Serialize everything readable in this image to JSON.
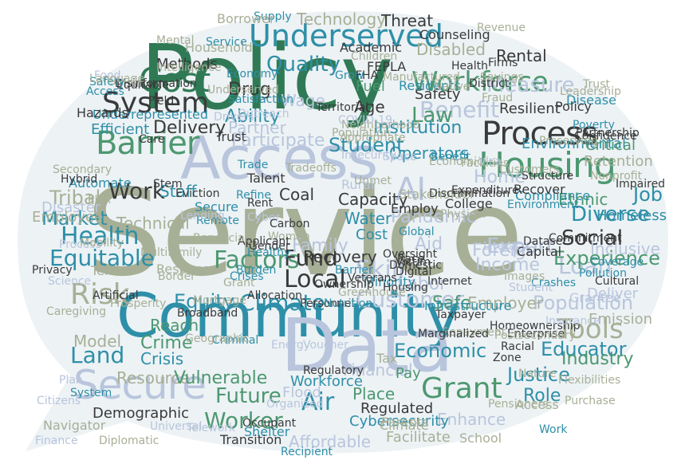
{
  "colors": {
    "background": "#ffffff",
    "bubble": "#edf2f5",
    "green_dark": "#2f7a55",
    "green_mid": "#4d9870",
    "teal": "#2e8fa8",
    "blue_grey": "#b8c5dc",
    "olive_grey": "#a7af96",
    "charcoal": "#3a3a3a",
    "light_grey": "#c7cbcf"
  },
  "words": [
    {
      "text": "Service",
      "color": "olive_grey"
    },
    {
      "text": "Policy",
      "color": "green_dark"
    },
    {
      "text": "Community",
      "color": "teal"
    },
    {
      "text": "Data",
      "color": "blue_grey"
    },
    {
      "text": "Access",
      "color": "blue_grey"
    },
    {
      "text": "Housing",
      "color": "green_mid"
    },
    {
      "text": "Process",
      "color": "charcoal"
    },
    {
      "text": "Secure",
      "color": "blue_grey"
    },
    {
      "text": "Cost",
      "color": "green_dark"
    },
    {
      "text": "Barrier",
      "color": "green_mid"
    },
    {
      "text": "Underserved",
      "color": "teal"
    },
    {
      "text": "Workforce",
      "color": "green_mid"
    },
    {
      "text": "System",
      "color": "charcoal"
    },
    {
      "text": "Risk",
      "color": "olive_grey"
    },
    {
      "text": "Climate",
      "color": "teal"
    },
    {
      "text": "Grant",
      "color": "green_mid"
    },
    {
      "text": "Customer",
      "color": "blue_grey"
    },
    {
      "text": "Benefit",
      "color": "blue_grey"
    },
    {
      "text": "Quality",
      "color": "teal"
    },
    {
      "text": "Work",
      "color": "charcoal"
    },
    {
      "text": "Health",
      "color": "teal"
    },
    {
      "text": "Equitable",
      "color": "teal"
    },
    {
      "text": "Factors",
      "color": "green_mid"
    },
    {
      "text": "Fund",
      "color": "charcoal"
    },
    {
      "text": "Local",
      "color": "charcoal"
    },
    {
      "text": "Student",
      "color": "teal"
    },
    {
      "text": "Law",
      "color": "green_mid"
    },
    {
      "text": "Loan",
      "color": "blue_grey"
    },
    {
      "text": "Population",
      "color": "blue_grey"
    },
    {
      "text": "Experience",
      "color": "green_mid"
    },
    {
      "text": "Tools",
      "color": "olive_grey"
    },
    {
      "text": "Educator",
      "color": "teal"
    },
    {
      "text": "Economic",
      "color": "teal"
    },
    {
      "text": "Skill",
      "color": "blue_grey"
    },
    {
      "text": "Land",
      "color": "teal"
    },
    {
      "text": "Equity",
      "color": "teal"
    },
    {
      "text": "Social",
      "color": "charcoal"
    },
    {
      "text": "Job",
      "color": "teal"
    },
    {
      "text": "Diverse",
      "color": "teal"
    },
    {
      "text": "Measure",
      "color": "blue_grey"
    },
    {
      "text": "AI",
      "color": "blue_grey"
    },
    {
      "text": "Future",
      "color": "green_mid"
    },
    {
      "text": "Worker",
      "color": "green_mid"
    },
    {
      "text": "Role",
      "color": "teal"
    },
    {
      "text": "Justice",
      "color": "teal"
    },
    {
      "text": "Industry",
      "color": "green_mid"
    },
    {
      "text": "Export",
      "color": "blue_grey"
    },
    {
      "text": "Income",
      "color": "blue_grey"
    },
    {
      "text": "Pandemic",
      "color": "blue_grey"
    },
    {
      "text": "Tribal",
      "color": "olive_grey"
    },
    {
      "text": "Market",
      "color": "teal"
    },
    {
      "text": "Disaster",
      "color": "blue_grey"
    },
    {
      "text": "Employee",
      "color": "olive_grey"
    },
    {
      "text": "Model",
      "color": "olive_grey"
    },
    {
      "text": "Crime",
      "color": "green_mid"
    },
    {
      "text": "Crisis",
      "color": "teal"
    },
    {
      "text": "Reach",
      "color": "green_mid"
    },
    {
      "text": "Resource",
      "color": "olive_grey"
    },
    {
      "text": "Vulnerable",
      "color": "green_mid"
    },
    {
      "text": "Air",
      "color": "teal"
    },
    {
      "text": "Methods",
      "color": "charcoal"
    },
    {
      "text": "Drug",
      "color": "charcoal"
    },
    {
      "text": "Wage",
      "color": "blue_grey"
    },
    {
      "text": "Age",
      "color": "charcoal"
    },
    {
      "text": "Fuel",
      "color": "green_mid"
    },
    {
      "text": "Ability",
      "color": "teal"
    },
    {
      "text": "Delivery",
      "color": "charcoal"
    },
    {
      "text": "Participate",
      "color": "blue_grey"
    },
    {
      "text": "Partner",
      "color": "blue_grey"
    },
    {
      "text": "Safety",
      "color": "charcoal"
    },
    {
      "text": "Resilient",
      "color": "charcoal"
    },
    {
      "text": "Environmental",
      "color": "teal"
    },
    {
      "text": "Staff",
      "color": "teal"
    },
    {
      "text": "Coal",
      "color": "charcoal"
    },
    {
      "text": "Home",
      "color": "blue_grey"
    },
    {
      "text": "Aid",
      "color": "blue_grey"
    },
    {
      "text": "Foreign",
      "color": "blue_grey"
    },
    {
      "text": "Labor",
      "color": "blue_grey"
    },
    {
      "text": "Safe",
      "color": "green_mid"
    },
    {
      "text": "Family",
      "color": "blue_grey"
    },
    {
      "text": "Recovery",
      "color": "charcoal"
    },
    {
      "text": "Technical",
      "color": "olive_grey"
    },
    {
      "text": "Capacity",
      "color": "charcoal"
    },
    {
      "text": "Water",
      "color": "teal"
    },
    {
      "text": "Operators",
      "color": "teal"
    },
    {
      "text": "Institution",
      "color": "teal"
    },
    {
      "text": "Technology",
      "color": "olive_grey"
    },
    {
      "text": "Threat",
      "color": "charcoal"
    },
    {
      "text": "Disabled",
      "color": "olive_grey"
    },
    {
      "text": "Rental",
      "color": "charcoal"
    },
    {
      "text": "Supply",
      "color": "teal"
    },
    {
      "text": "Borrower",
      "color": "olive_grey"
    },
    {
      "text": "Household",
      "color": "olive_grey"
    },
    {
      "text": "Efficient",
      "color": "teal"
    },
    {
      "text": "Underrepresented",
      "color": "teal"
    },
    {
      "text": "Hazards",
      "color": "charcoal"
    },
    {
      "text": "Trust",
      "color": "charcoal"
    },
    {
      "text": "Enhance",
      "color": "blue_grey"
    },
    {
      "text": "Affordable",
      "color": "blue_grey"
    },
    {
      "text": "Facilitate",
      "color": "olive_grey"
    },
    {
      "text": "Demographic",
      "color": "charcoal"
    },
    {
      "text": "Navigator",
      "color": "olive_grey"
    },
    {
      "text": "Finance",
      "color": "blue_grey"
    },
    {
      "text": "Deliver",
      "color": "blue_grey"
    },
    {
      "text": "Inclusive",
      "color": "blue_grey"
    },
    {
      "text": "Homeless",
      "color": "teal"
    },
    {
      "text": "Ethnic",
      "color": "green_mid"
    },
    {
      "text": "Compliance",
      "color": "teal"
    },
    {
      "text": "Retention",
      "color": "olive_grey"
    },
    {
      "text": "Critical",
      "color": "green_mid"
    },
    {
      "text": "Grantee",
      "color": "blue_grey"
    },
    {
      "text": "Emission",
      "color": "olive_grey"
    },
    {
      "text": "Employer",
      "color": "olive_grey"
    },
    {
      "text": "Infrastructure",
      "color": "teal"
    },
    {
      "text": "Financial",
      "color": "blue_grey"
    },
    {
      "text": "Place",
      "color": "green_mid"
    },
    {
      "text": "Pay",
      "color": "green_mid"
    },
    {
      "text": "Tax",
      "color": "olive_grey"
    },
    {
      "text": "Nature",
      "color": "olive_grey"
    },
    {
      "text": "Zone",
      "color": "charcoal"
    },
    {
      "text": "Racial",
      "color": "charcoal"
    },
    {
      "text": "Capital",
      "color": "charcoal"
    },
    {
      "text": "Dataset",
      "color": "charcoal"
    },
    {
      "text": "Internet",
      "color": "charcoal"
    },
    {
      "text": "Victim",
      "color": "charcoal"
    },
    {
      "text": "Digital",
      "color": "charcoal"
    },
    {
      "text": "Race",
      "color": "charcoal"
    },
    {
      "text": "Minority",
      "color": "teal"
    },
    {
      "text": "Cost",
      "color": "teal"
    },
    {
      "text": "Employ",
      "color": "charcoal"
    },
    {
      "text": "Global",
      "color": "teal"
    },
    {
      "text": "Rural",
      "color": "blue_grey"
    },
    {
      "text": "Stakeholder",
      "color": "olive_grey"
    },
    {
      "text": "Talent",
      "color": "charcoal"
    },
    {
      "text": "Trade",
      "color": "teal"
    },
    {
      "text": "Refine",
      "color": "teal"
    },
    {
      "text": "Rent",
      "color": "charcoal"
    },
    {
      "text": "Cyber",
      "color": "blue_grey"
    },
    {
      "text": "Secure",
      "color": "teal"
    },
    {
      "text": "Remote",
      "color": "teal"
    },
    {
      "text": "Women",
      "color": "olive_grey"
    },
    {
      "text": "Carbon",
      "color": "charcoal"
    },
    {
      "text": "Tenant",
      "color": "olive_grey"
    },
    {
      "text": "Response",
      "color": "olive_grey"
    },
    {
      "text": "Science",
      "color": "blue_grey"
    },
    {
      "text": "Privacy",
      "color": "charcoal"
    },
    {
      "text": "Border",
      "color": "olive_grey"
    },
    {
      "text": "Burden",
      "color": "teal"
    },
    {
      "text": "Crises",
      "color": "teal"
    },
    {
      "text": "Mortgage",
      "color": "olive_grey"
    },
    {
      "text": "Broadband",
      "color": "charcoal"
    },
    {
      "text": "Stem",
      "color": "charcoal"
    },
    {
      "text": "Eviction",
      "color": "charcoal"
    },
    {
      "text": "Care",
      "color": "charcoal"
    },
    {
      "text": "PHA",
      "color": "olive_grey"
    },
    {
      "text": "Automate",
      "color": "teal"
    },
    {
      "text": "Secondary",
      "color": "olive_grey"
    },
    {
      "text": "Disinformation",
      "color": "charcoal"
    },
    {
      "text": "Food",
      "color": "blue_grey"
    },
    {
      "text": "Equitable",
      "color": "charcoal"
    },
    {
      "text": "Field",
      "color": "charcoal"
    },
    {
      "text": "Economy",
      "color": "teal"
    },
    {
      "text": "Grow",
      "color": "teal"
    },
    {
      "text": "FEPLA",
      "color": "charcoal"
    },
    {
      "text": "FHA",
      "color": "charcoal"
    },
    {
      "text": "Academic",
      "color": "charcoal"
    },
    {
      "text": "Children",
      "color": "olive_grey"
    },
    {
      "text": "Manufactured",
      "color": "olive_grey"
    },
    {
      "text": "Residents",
      "color": "teal"
    },
    {
      "text": "Native",
      "color": "olive_grey"
    },
    {
      "text": "Counseling",
      "color": "charcoal"
    },
    {
      "text": "Health",
      "color": "charcoal"
    },
    {
      "text": "Fraud",
      "color": "olive_grey"
    },
    {
      "text": "District",
      "color": "charcoal"
    },
    {
      "text": "Firms",
      "color": "charcoal"
    },
    {
      "text": "Disease",
      "color": "teal"
    },
    {
      "text": "Policy",
      "color": "charcoal"
    },
    {
      "text": "Poverty",
      "color": "teal"
    },
    {
      "text": "Partnership",
      "color": "charcoal"
    },
    {
      "text": "Confidence",
      "color": "charcoal"
    },
    {
      "text": "Neighborhood",
      "color": "olive_grey"
    },
    {
      "text": "COVID-19",
      "color": "blue_grey"
    },
    {
      "text": "Space",
      "color": "blue_grey"
    },
    {
      "text": "Benefit",
      "color": "teal"
    },
    {
      "text": "Facilities",
      "color": "olive_grey"
    },
    {
      "text": "Recover",
      "color": "charcoal"
    },
    {
      "text": "College",
      "color": "charcoal"
    },
    {
      "text": "Discrimination",
      "color": "charcoal"
    },
    {
      "text": "Healthy",
      "color": "teal"
    },
    {
      "text": "Applicant",
      "color": "charcoal"
    },
    {
      "text": "Gender",
      "color": "charcoal"
    },
    {
      "text": "Cultural",
      "color": "charcoal"
    },
    {
      "text": "Crashes",
      "color": "teal"
    },
    {
      "text": "Pollution",
      "color": "teal"
    },
    {
      "text": "Coverage",
      "color": "teal"
    },
    {
      "text": "Impaired",
      "color": "charcoal"
    },
    {
      "text": "Oversight",
      "color": "charcoal"
    },
    {
      "text": "Domestic",
      "color": "charcoal"
    },
    {
      "text": "Housing",
      "color": "charcoal"
    },
    {
      "text": "Barrier",
      "color": "teal"
    },
    {
      "text": "Veterans",
      "color": "charcoal"
    },
    {
      "text": "Taxpayer",
      "color": "charcoal"
    },
    {
      "text": "Homeownership",
      "color": "charcoal"
    },
    {
      "text": "Commitment",
      "color": "charcoal"
    },
    {
      "text": "Allocation",
      "color": "charcoal"
    },
    {
      "text": "Personnel",
      "color": "charcoal"
    },
    {
      "text": "Nutrition",
      "color": "teal"
    },
    {
      "text": "Energy",
      "color": "blue_grey"
    },
    {
      "text": "Voucher",
      "color": "blue_grey"
    },
    {
      "text": "Regulatory",
      "color": "charcoal"
    },
    {
      "text": "Workforce",
      "color": "teal"
    },
    {
      "text": "Flood",
      "color": "blue_grey"
    },
    {
      "text": "Organized",
      "color": "blue_grey"
    },
    {
      "text": "Occupant",
      "color": "charcoal"
    },
    {
      "text": "Shelter",
      "color": "teal"
    },
    {
      "text": "Transition",
      "color": "charcoal"
    },
    {
      "text": "Telework",
      "color": "blue_grey"
    },
    {
      "text": "Universal",
      "color": "blue_grey"
    },
    {
      "text": "Recipient",
      "color": "teal"
    },
    {
      "text": "Cybersecurity",
      "color": "teal"
    },
    {
      "text": "Regulated",
      "color": "charcoal"
    },
    {
      "text": "Parents",
      "color": "olive_grey"
    },
    {
      "text": "Climate",
      "color": "olive_grey"
    },
    {
      "text": "School",
      "color": "olive_grey"
    },
    {
      "text": "Access",
      "color": "olive_grey"
    },
    {
      "text": "Work",
      "color": "teal"
    },
    {
      "text": "System",
      "color": "teal"
    },
    {
      "text": "Diplomatic",
      "color": "olive_grey"
    },
    {
      "text": "Criminal",
      "color": "teal"
    },
    {
      "text": "Geographic",
      "color": "olive_grey"
    },
    {
      "text": "Prosperity",
      "color": "olive_grey"
    },
    {
      "text": "Multifamily",
      "color": "olive_grey"
    },
    {
      "text": "Process",
      "color": "blue_grey"
    },
    {
      "text": "Hybrid",
      "color": "charcoal"
    },
    {
      "text": "Grant",
      "color": "olive_grey"
    },
    {
      "text": "Structure",
      "color": "charcoal"
    },
    {
      "text": "Enterprise",
      "color": "charcoal"
    },
    {
      "text": "Insurance",
      "color": "blue_grey"
    },
    {
      "text": "Leadership",
      "color": "olive_grey"
    },
    {
      "text": "Images",
      "color": "olive_grey"
    },
    {
      "text": "Repayment",
      "color": "olive_grey"
    },
    {
      "text": "Territorial",
      "color": "charcoal"
    },
    {
      "text": "Insecurity",
      "color": "blue_grey"
    },
    {
      "text": "Tradeoffs",
      "color": "olive_grey"
    },
    {
      "text": "Population",
      "color": "olive_grey"
    },
    {
      "text": "Satisfaction",
      "color": "teal"
    },
    {
      "text": "Drivers",
      "color": "blue_grey"
    },
    {
      "text": "Outreach",
      "color": "blue_grey"
    },
    {
      "text": "Lending",
      "color": "blue_grey"
    },
    {
      "text": "Beneficiary",
      "color": "olive_grey"
    },
    {
      "text": "Artificial",
      "color": "charcoal"
    },
    {
      "text": "Caregiving",
      "color": "olive_grey"
    },
    {
      "text": "Revenue",
      "color": "olive_grey"
    },
    {
      "text": "Economic",
      "color": "olive_grey"
    },
    {
      "text": "Physical",
      "color": "olive_grey"
    },
    {
      "text": "Literacy",
      "color": "blue_grey"
    },
    {
      "text": "Environment",
      "color": "teal"
    },
    {
      "text": "Preserving",
      "color": "olive_grey"
    },
    {
      "text": "Customers",
      "color": "olive_grey"
    },
    {
      "text": "Expenditure",
      "color": "charcoal"
    },
    {
      "text": "Appropriate",
      "color": "olive_grey"
    },
    {
      "text": "Unmet",
      "color": "olive_grey"
    },
    {
      "text": "Visa",
      "color": "blue_grey"
    },
    {
      "text": "Student",
      "color": "blue_grey"
    },
    {
      "text": "Marginalized",
      "color": "charcoal"
    },
    {
      "text": "Ownership",
      "color": "charcoal"
    },
    {
      "text": "Greenhouse",
      "color": "olive_grey"
    },
    {
      "text": "Postsecondary",
      "color": "olive_grey"
    },
    {
      "text": "Purchase",
      "color": "olive_grey"
    },
    {
      "text": "Pensioners",
      "color": "olive_grey"
    },
    {
      "text": "Flexibilities",
      "color": "olive_grey"
    },
    {
      "text": "Citizens",
      "color": "blue_grey"
    },
    {
      "text": "Plan",
      "color": "blue_grey"
    },
    {
      "text": "Mental",
      "color": "olive_grey"
    },
    {
      "text": "Service",
      "color": "teal"
    },
    {
      "text": "Intelligence",
      "color": "olive_grey"
    },
    {
      "text": "Underserved",
      "color": "olive_grey"
    },
    {
      "text": "Mobility",
      "color": "olive_grey"
    },
    {
      "text": "Nonprofit",
      "color": "olive_grey"
    },
    {
      "text": "Savings",
      "color": "olive_grey"
    },
    {
      "text": "Access",
      "color": "teal"
    },
    {
      "text": "Safety",
      "color": "teal"
    },
    {
      "text": "Language",
      "color": "olive_grey"
    },
    {
      "text": "Trust",
      "color": "olive_grey"
    }
  ]
}
